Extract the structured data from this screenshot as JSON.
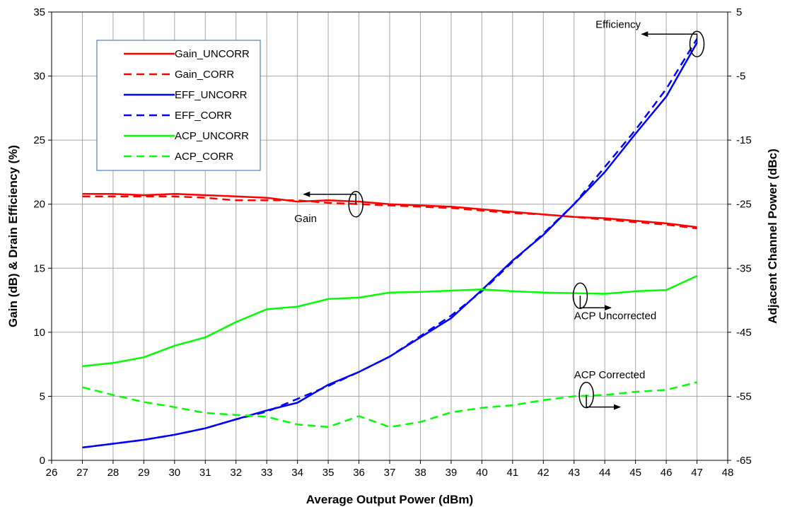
{
  "chart_data": {
    "type": "line",
    "title": "",
    "xlabel": "Average Output Power (dBm)",
    "ylabel_left": "Gain (dB) & Drain Efficiency (%)",
    "ylabel_right": "Adjacent Channel Power (dBc)",
    "xlim": [
      26,
      48
    ],
    "ylim_left": [
      0,
      35
    ],
    "ylim_right": [
      -65,
      5
    ],
    "xticks": [
      26,
      27,
      28,
      29,
      30,
      31,
      32,
      33,
      34,
      35,
      36,
      37,
      38,
      39,
      40,
      41,
      42,
      43,
      44,
      45,
      46,
      47,
      48
    ],
    "yticks_left": [
      0,
      5,
      10,
      15,
      20,
      25,
      30,
      35
    ],
    "yticks_right": [
      -65,
      -55,
      -45,
      -35,
      -25,
      -15,
      -5,
      5
    ],
    "grid": true,
    "legend_position": "top-left",
    "x": [
      27,
      28,
      29,
      30,
      31,
      32,
      33,
      34,
      35,
      36,
      37,
      38,
      39,
      40,
      41,
      42,
      43,
      44,
      45,
      46,
      47
    ],
    "series": [
      {
        "name": "Gain_UNCORR",
        "axis": "left",
        "color": "#ff0000",
        "dashed": false,
        "values": [
          20.8,
          20.8,
          20.7,
          20.8,
          20.7,
          20.6,
          20.5,
          20.2,
          20.3,
          20.2,
          20.0,
          19.9,
          19.8,
          19.6,
          19.4,
          19.2,
          19.0,
          18.9,
          18.7,
          18.5,
          18.2
        ]
      },
      {
        "name": "Gain_CORR",
        "axis": "left",
        "color": "#ff0000",
        "dashed": true,
        "values": [
          20.6,
          20.6,
          20.6,
          20.6,
          20.5,
          20.3,
          20.3,
          20.3,
          20.1,
          20.0,
          19.9,
          19.8,
          19.7,
          19.5,
          19.3,
          19.2,
          19.0,
          18.8,
          18.6,
          18.4,
          18.1
        ]
      },
      {
        "name": "EFF_UNCORR",
        "axis": "left",
        "color": "#0000ff",
        "dashed": false,
        "values": [
          1.0,
          1.3,
          1.6,
          2.0,
          2.5,
          3.2,
          3.9,
          4.5,
          5.9,
          6.9,
          8.1,
          9.6,
          11.1,
          13.3,
          15.6,
          17.6,
          20.0,
          22.5,
          25.5,
          28.4,
          32.6
        ]
      },
      {
        "name": "EFF_CORR",
        "axis": "left",
        "color": "#0000ff",
        "dashed": true,
        "values": [
          1.0,
          1.3,
          1.6,
          2.0,
          2.5,
          3.2,
          3.8,
          4.8,
          5.8,
          6.9,
          8.1,
          9.7,
          11.3,
          13.2,
          15.5,
          17.7,
          20.0,
          22.9,
          25.8,
          29.0,
          32.9
        ]
      },
      {
        "name": "ACP_UNCORR",
        "axis": "right",
        "color": "#00ff00",
        "dashed": false,
        "values": [
          -50.3,
          -49.8,
          -48.9,
          -47.1,
          -45.8,
          -43.4,
          -41.4,
          -41.0,
          -39.8,
          -39.6,
          -38.8,
          -38.7,
          -38.5,
          -38.3,
          -38.6,
          -38.8,
          -38.9,
          -39.0,
          -38.6,
          -38.4,
          -36.2
        ]
      },
      {
        "name": "ACP_CORR",
        "axis": "right",
        "color": "#00ff00",
        "dashed": true,
        "values": [
          -53.6,
          -54.8,
          -55.9,
          -56.7,
          -57.6,
          -57.9,
          -58.2,
          -59.4,
          -59.8,
          -58.1,
          -59.8,
          -59.0,
          -57.5,
          -56.8,
          -56.4,
          -55.6,
          -55.0,
          -54.8,
          -54.3,
          -54.0,
          -52.8
        ]
      }
    ],
    "annotations": [
      {
        "text": "Efficiency",
        "x": 43.7,
        "y": 2.5,
        "axis": "right"
      },
      {
        "text": "Gain",
        "x": 33.9,
        "y": 18.6,
        "axis": "left"
      },
      {
        "text": "ACP Uncorrected",
        "x": 43.0,
        "y": -43.0,
        "axis": "right"
      },
      {
        "text": "ACP Corrected",
        "x": 43.0,
        "y": -52.2,
        "axis": "right"
      }
    ]
  }
}
